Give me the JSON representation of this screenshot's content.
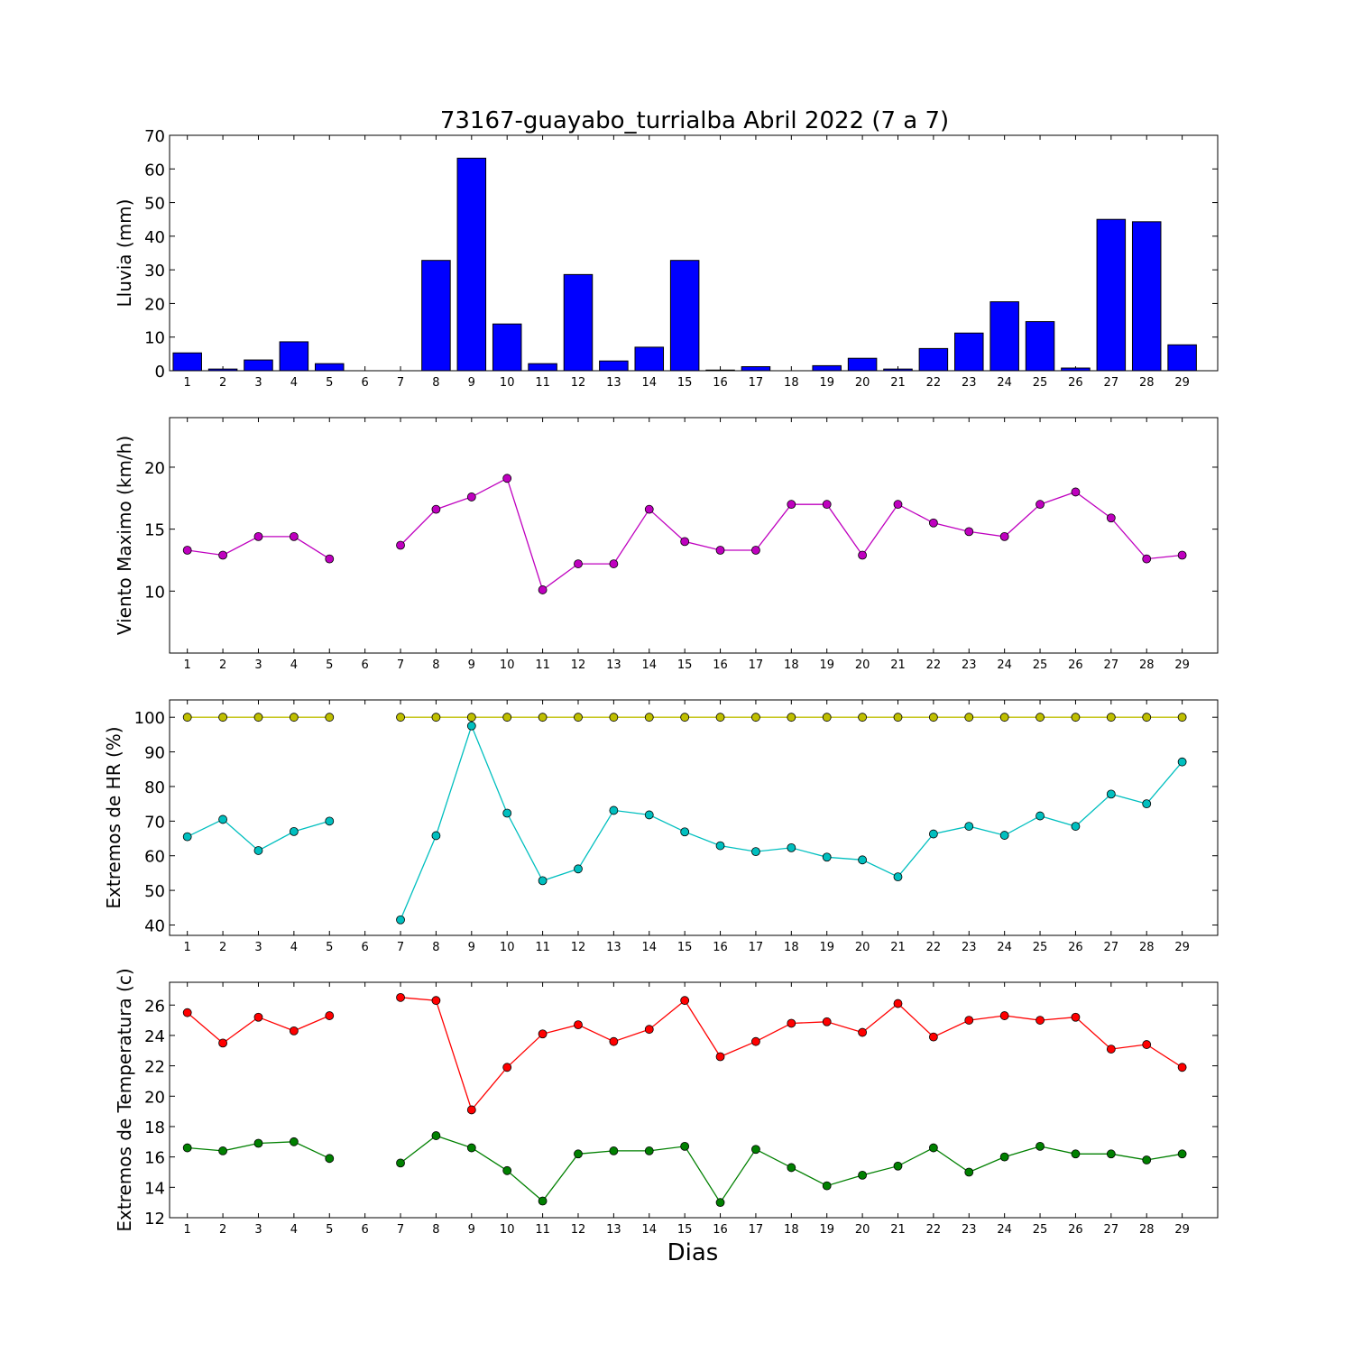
{
  "chart_data": {
    "type": "multi-panel",
    "title": "73167-guayabo_turrialba Abril 2022  (7 a 7)",
    "xlabel": "Dias",
    "x": [
      1,
      2,
      3,
      4,
      5,
      6,
      7,
      8,
      9,
      10,
      11,
      12,
      13,
      14,
      15,
      16,
      17,
      18,
      19,
      20,
      21,
      22,
      23,
      24,
      25,
      26,
      27,
      28,
      29
    ],
    "panels": [
      {
        "type": "bar",
        "ylabel": "Lluvia (mm)",
        "ylim": [
          0,
          70
        ],
        "yticks": [
          0,
          10,
          20,
          30,
          40,
          50,
          60,
          70
        ],
        "series": [
          {
            "color": "#0000ff",
            "values": [
              5.3,
              0.5,
              3.2,
              8.6,
              2.1,
              0,
              0,
              32.8,
              63.2,
              13.9,
              2.1,
              28.6,
              2.9,
              7.0,
              32.8,
              0.2,
              1.2,
              0,
              1.5,
              3.7,
              0.5,
              6.6,
              11.2,
              20.5,
              14.6,
              0.8,
              45.0,
              44.3,
              7.7
            ]
          }
        ]
      },
      {
        "type": "line",
        "ylabel": "Viento Maximo (km/h)",
        "ylim": [
          5,
          24
        ],
        "yticks": [
          10,
          15,
          20
        ],
        "series": [
          {
            "color": "#bf00bf",
            "values": [
              13.3,
              12.9,
              14.4,
              14.4,
              12.6,
              null,
              13.7,
              16.6,
              17.6,
              19.1,
              10.1,
              12.2,
              12.2,
              16.6,
              14.0,
              13.3,
              13.3,
              17.0,
              17.0,
              12.9,
              17.0,
              15.5,
              14.8,
              14.4,
              17.0,
              18.0,
              15.9,
              12.6,
              12.9
            ]
          }
        ]
      },
      {
        "type": "line",
        "ylabel": "Extremos de HR (%)",
        "ylim": [
          37,
          105
        ],
        "yticks": [
          40,
          50,
          60,
          70,
          80,
          90,
          100
        ],
        "series": [
          {
            "color": "#bfbf00",
            "values": [
              100,
              100,
              100,
              100,
              100,
              null,
              100,
              100,
              100,
              100,
              100,
              100,
              100,
              100,
              100,
              100,
              100,
              100,
              100,
              100,
              100,
              100,
              100,
              100,
              100,
              100,
              100,
              100,
              100
            ]
          },
          {
            "color": "#00bfbf",
            "values": [
              65.5,
              70.5,
              61.5,
              67,
              70,
              null,
              41.5,
              65.8,
              97.5,
              72.3,
              52.8,
              56.2,
              73.1,
              71.8,
              66.9,
              62.9,
              61.2,
              62.3,
              59.6,
              58.8,
              53.9,
              66.3,
              68.5,
              65.9,
              71.5,
              68.5,
              77.8,
              75.0,
              87.1
            ]
          }
        ]
      },
      {
        "type": "line",
        "ylabel": "Extremos de Temperatura (c)",
        "ylim": [
          12,
          27.5
        ],
        "yticks": [
          12,
          14,
          16,
          18,
          20,
          22,
          24,
          26
        ],
        "series": [
          {
            "color": "#ff0000",
            "values": [
              25.5,
              23.5,
              25.2,
              24.3,
              25.3,
              null,
              26.5,
              26.3,
              19.1,
              21.9,
              24.1,
              24.7,
              23.6,
              24.4,
              26.3,
              22.6,
              23.6,
              24.8,
              24.9,
              24.2,
              26.1,
              23.9,
              25.0,
              25.3,
              25.0,
              25.2,
              23.1,
              23.4,
              21.9
            ]
          },
          {
            "color": "#008000",
            "values": [
              16.6,
              16.4,
              16.9,
              17.0,
              15.9,
              null,
              15.6,
              17.4,
              16.6,
              15.1,
              13.1,
              16.2,
              16.4,
              16.4,
              16.7,
              13.0,
              16.5,
              15.3,
              14.1,
              14.8,
              15.4,
              16.6,
              15.0,
              16.0,
              16.7,
              16.2,
              16.2,
              15.8,
              16.2
            ]
          }
        ]
      }
    ]
  }
}
